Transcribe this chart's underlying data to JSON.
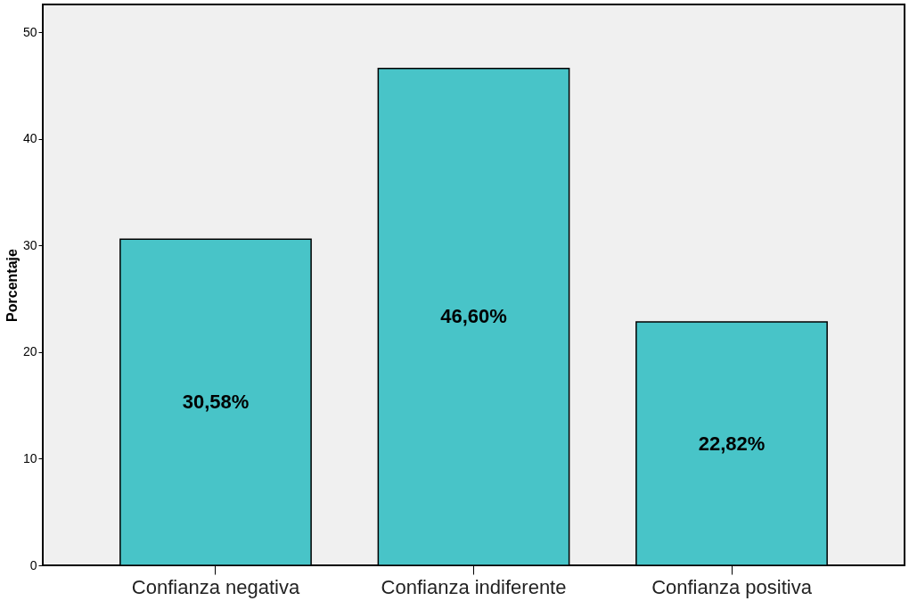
{
  "chart_data": {
    "type": "bar",
    "ylabel": "Porcentaje",
    "categories": [
      "Confianza negativa",
      "Confianza indiferente",
      "Confianza positiva"
    ],
    "values": [
      30.58,
      46.6,
      22.82
    ],
    "value_labels": [
      "30,58%",
      "46,60%",
      "22,82%"
    ],
    "color": "#48c4c8",
    "ylim": [
      0,
      52.6
    ],
    "yticks": [
      0,
      10,
      20,
      30,
      40,
      50
    ],
    "grid": false
  }
}
